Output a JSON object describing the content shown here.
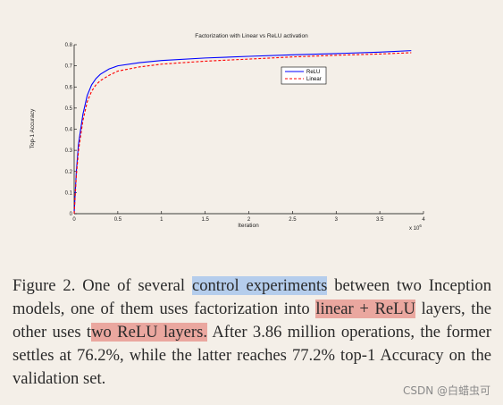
{
  "chart_data": {
    "type": "line",
    "title": "Factorization with Linear vs ReLU activation",
    "xlabel": "Iteration",
    "ylabel": "Top-1 Accuracy",
    "x_multiplier_label": "x 10",
    "x_multiplier_exp": "6",
    "xlim": [
      0,
      4
    ],
    "ylim": [
      0,
      0.8
    ],
    "xticks": [
      0,
      0.5,
      1,
      1.5,
      2,
      2.5,
      3,
      3.5,
      4
    ],
    "xtick_labels": [
      "0",
      "0.5",
      "1",
      "1.5",
      "2",
      "2.5",
      "3",
      "3.5",
      "4"
    ],
    "yticks": [
      0,
      0.1,
      0.2,
      0.3,
      0.4,
      0.5,
      0.6,
      0.7,
      0.8
    ],
    "ytick_labels": [
      "0",
      "0.1",
      "0.2",
      "0.3",
      "0.4",
      "0.5",
      "0.6",
      "0.7",
      "0.8"
    ],
    "legend_position": "inside-upper-middle",
    "grid": false,
    "series": [
      {
        "name": "ReLU",
        "color": "#0000ff",
        "style": "solid",
        "x": [
          0,
          0.025,
          0.05,
          0.1,
          0.15,
          0.2,
          0.25,
          0.3,
          0.4,
          0.5,
          0.75,
          1,
          1.5,
          2,
          2.5,
          3,
          3.5,
          3.86
        ],
        "y": [
          0,
          0.2,
          0.33,
          0.47,
          0.56,
          0.61,
          0.64,
          0.66,
          0.685,
          0.7,
          0.715,
          0.725,
          0.737,
          0.745,
          0.752,
          0.758,
          0.765,
          0.772
        ]
      },
      {
        "name": "Linear",
        "color": "#ff0000",
        "style": "dashed",
        "x": [
          0,
          0.025,
          0.05,
          0.1,
          0.15,
          0.2,
          0.25,
          0.3,
          0.4,
          0.5,
          0.75,
          1,
          1.5,
          2,
          2.5,
          3,
          3.5,
          3.86
        ],
        "y": [
          0,
          0.18,
          0.3,
          0.44,
          0.53,
          0.58,
          0.61,
          0.63,
          0.655,
          0.675,
          0.695,
          0.708,
          0.722,
          0.732,
          0.742,
          0.75,
          0.756,
          0.762
        ]
      }
    ]
  },
  "caption": {
    "seg1": "Figure 2. One of several ",
    "hl1": "control experiments",
    "seg2": " between two Inception models, one of them uses factorization into ",
    "hl2": "linear + ReLU",
    "seg3": " layers, the other uses t",
    "hl3": "wo ReLU layers.",
    "seg4": " After 3.86 million operations, the former settles at 76.2%, while the latter reaches 77.2% top-1 Accuracy on the validation set."
  },
  "watermark": "CSDN @白蜡虫可"
}
